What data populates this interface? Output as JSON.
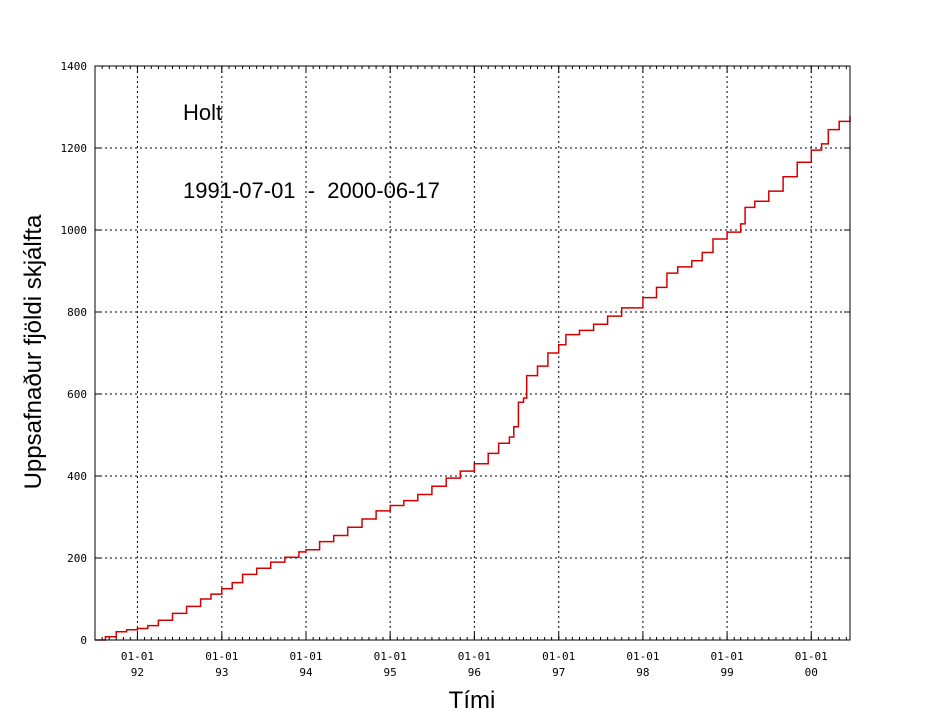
{
  "chart_data": {
    "type": "line",
    "title": "",
    "xlabel": "Tími",
    "ylabel": "Uppsafnaður fjöldi skjálfta",
    "annotations": [
      "Holt",
      "1991-07-01  -  2000-06-17"
    ],
    "xlim": [
      "1991-07-01",
      "2000-06-17"
    ],
    "ylim": [
      0,
      1400
    ],
    "y_ticks": [
      0,
      200,
      400,
      600,
      800,
      1000,
      1200,
      1400
    ],
    "x_ticks": [
      {
        "date": "1992-01-01",
        "label": "01-01",
        "sublabel": "92"
      },
      {
        "date": "1993-01-01",
        "label": "01-01",
        "sublabel": "93"
      },
      {
        "date": "1994-01-01",
        "label": "01-01",
        "sublabel": "94"
      },
      {
        "date": "1995-01-01",
        "label": "01-01",
        "sublabel": "95"
      },
      {
        "date": "1996-01-01",
        "label": "01-01",
        "sublabel": "96"
      },
      {
        "date": "1997-01-01",
        "label": "01-01",
        "sublabel": "97"
      },
      {
        "date": "1998-01-01",
        "label": "01-01",
        "sublabel": "98"
      },
      {
        "date": "1999-01-01",
        "label": "01-01",
        "sublabel": "99"
      },
      {
        "date": "2000-01-01",
        "label": "01-01",
        "sublabel": "00"
      }
    ],
    "grid": true,
    "series": [
      {
        "color": "#d40000",
        "step": true,
        "points": [
          [
            "1991-07-01",
            0
          ],
          [
            "1991-08-15",
            8
          ],
          [
            "1991-10-01",
            20
          ],
          [
            "1991-11-15",
            25
          ],
          [
            "1992-01-01",
            28
          ],
          [
            "1992-02-15",
            35
          ],
          [
            "1992-04-01",
            48
          ],
          [
            "1992-06-01",
            65
          ],
          [
            "1992-08-01",
            82
          ],
          [
            "1992-10-01",
            100
          ],
          [
            "1992-11-15",
            112
          ],
          [
            "1993-01-01",
            125
          ],
          [
            "1993-02-15",
            140
          ],
          [
            "1993-04-01",
            160
          ],
          [
            "1993-06-01",
            175
          ],
          [
            "1993-08-01",
            190
          ],
          [
            "1993-10-01",
            202
          ],
          [
            "1993-12-01",
            215
          ],
          [
            "1994-01-01",
            220
          ],
          [
            "1994-03-01",
            240
          ],
          [
            "1994-05-01",
            255
          ],
          [
            "1994-07-01",
            275
          ],
          [
            "1994-09-01",
            295
          ],
          [
            "1994-11-01",
            315
          ],
          [
            "1995-01-01",
            328
          ],
          [
            "1995-03-01",
            340
          ],
          [
            "1995-05-01",
            355
          ],
          [
            "1995-07-01",
            375
          ],
          [
            "1995-09-01",
            395
          ],
          [
            "1995-11-01",
            412
          ],
          [
            "1996-01-01",
            430
          ],
          [
            "1996-03-01",
            455
          ],
          [
            "1996-04-15",
            480
          ],
          [
            "1996-06-01",
            495
          ],
          [
            "1996-06-20",
            520
          ],
          [
            "1996-07-10",
            580
          ],
          [
            "1996-08-01",
            590
          ],
          [
            "1996-08-15",
            645
          ],
          [
            "1996-10-01",
            668
          ],
          [
            "1996-11-15",
            700
          ],
          [
            "1997-01-01",
            720
          ],
          [
            "1997-02-01",
            745
          ],
          [
            "1997-04-01",
            755
          ],
          [
            "1997-06-01",
            770
          ],
          [
            "1997-08-01",
            790
          ],
          [
            "1997-10-01",
            810
          ],
          [
            "1998-01-01",
            835
          ],
          [
            "1998-03-01",
            860
          ],
          [
            "1998-04-15",
            895
          ],
          [
            "1998-06-01",
            910
          ],
          [
            "1998-08-01",
            925
          ],
          [
            "1998-09-15",
            945
          ],
          [
            "1998-11-01",
            978
          ],
          [
            "1999-01-01",
            995
          ],
          [
            "1999-03-01",
            1015
          ],
          [
            "1999-03-20",
            1055
          ],
          [
            "1999-05-01",
            1070
          ],
          [
            "1999-07-01",
            1095
          ],
          [
            "1999-09-01",
            1130
          ],
          [
            "1999-11-01",
            1165
          ],
          [
            "2000-01-01",
            1195
          ],
          [
            "2000-02-15",
            1210
          ],
          [
            "2000-03-15",
            1245
          ],
          [
            "2000-05-01",
            1265
          ],
          [
            "2000-06-17",
            1278
          ]
        ]
      }
    ]
  }
}
